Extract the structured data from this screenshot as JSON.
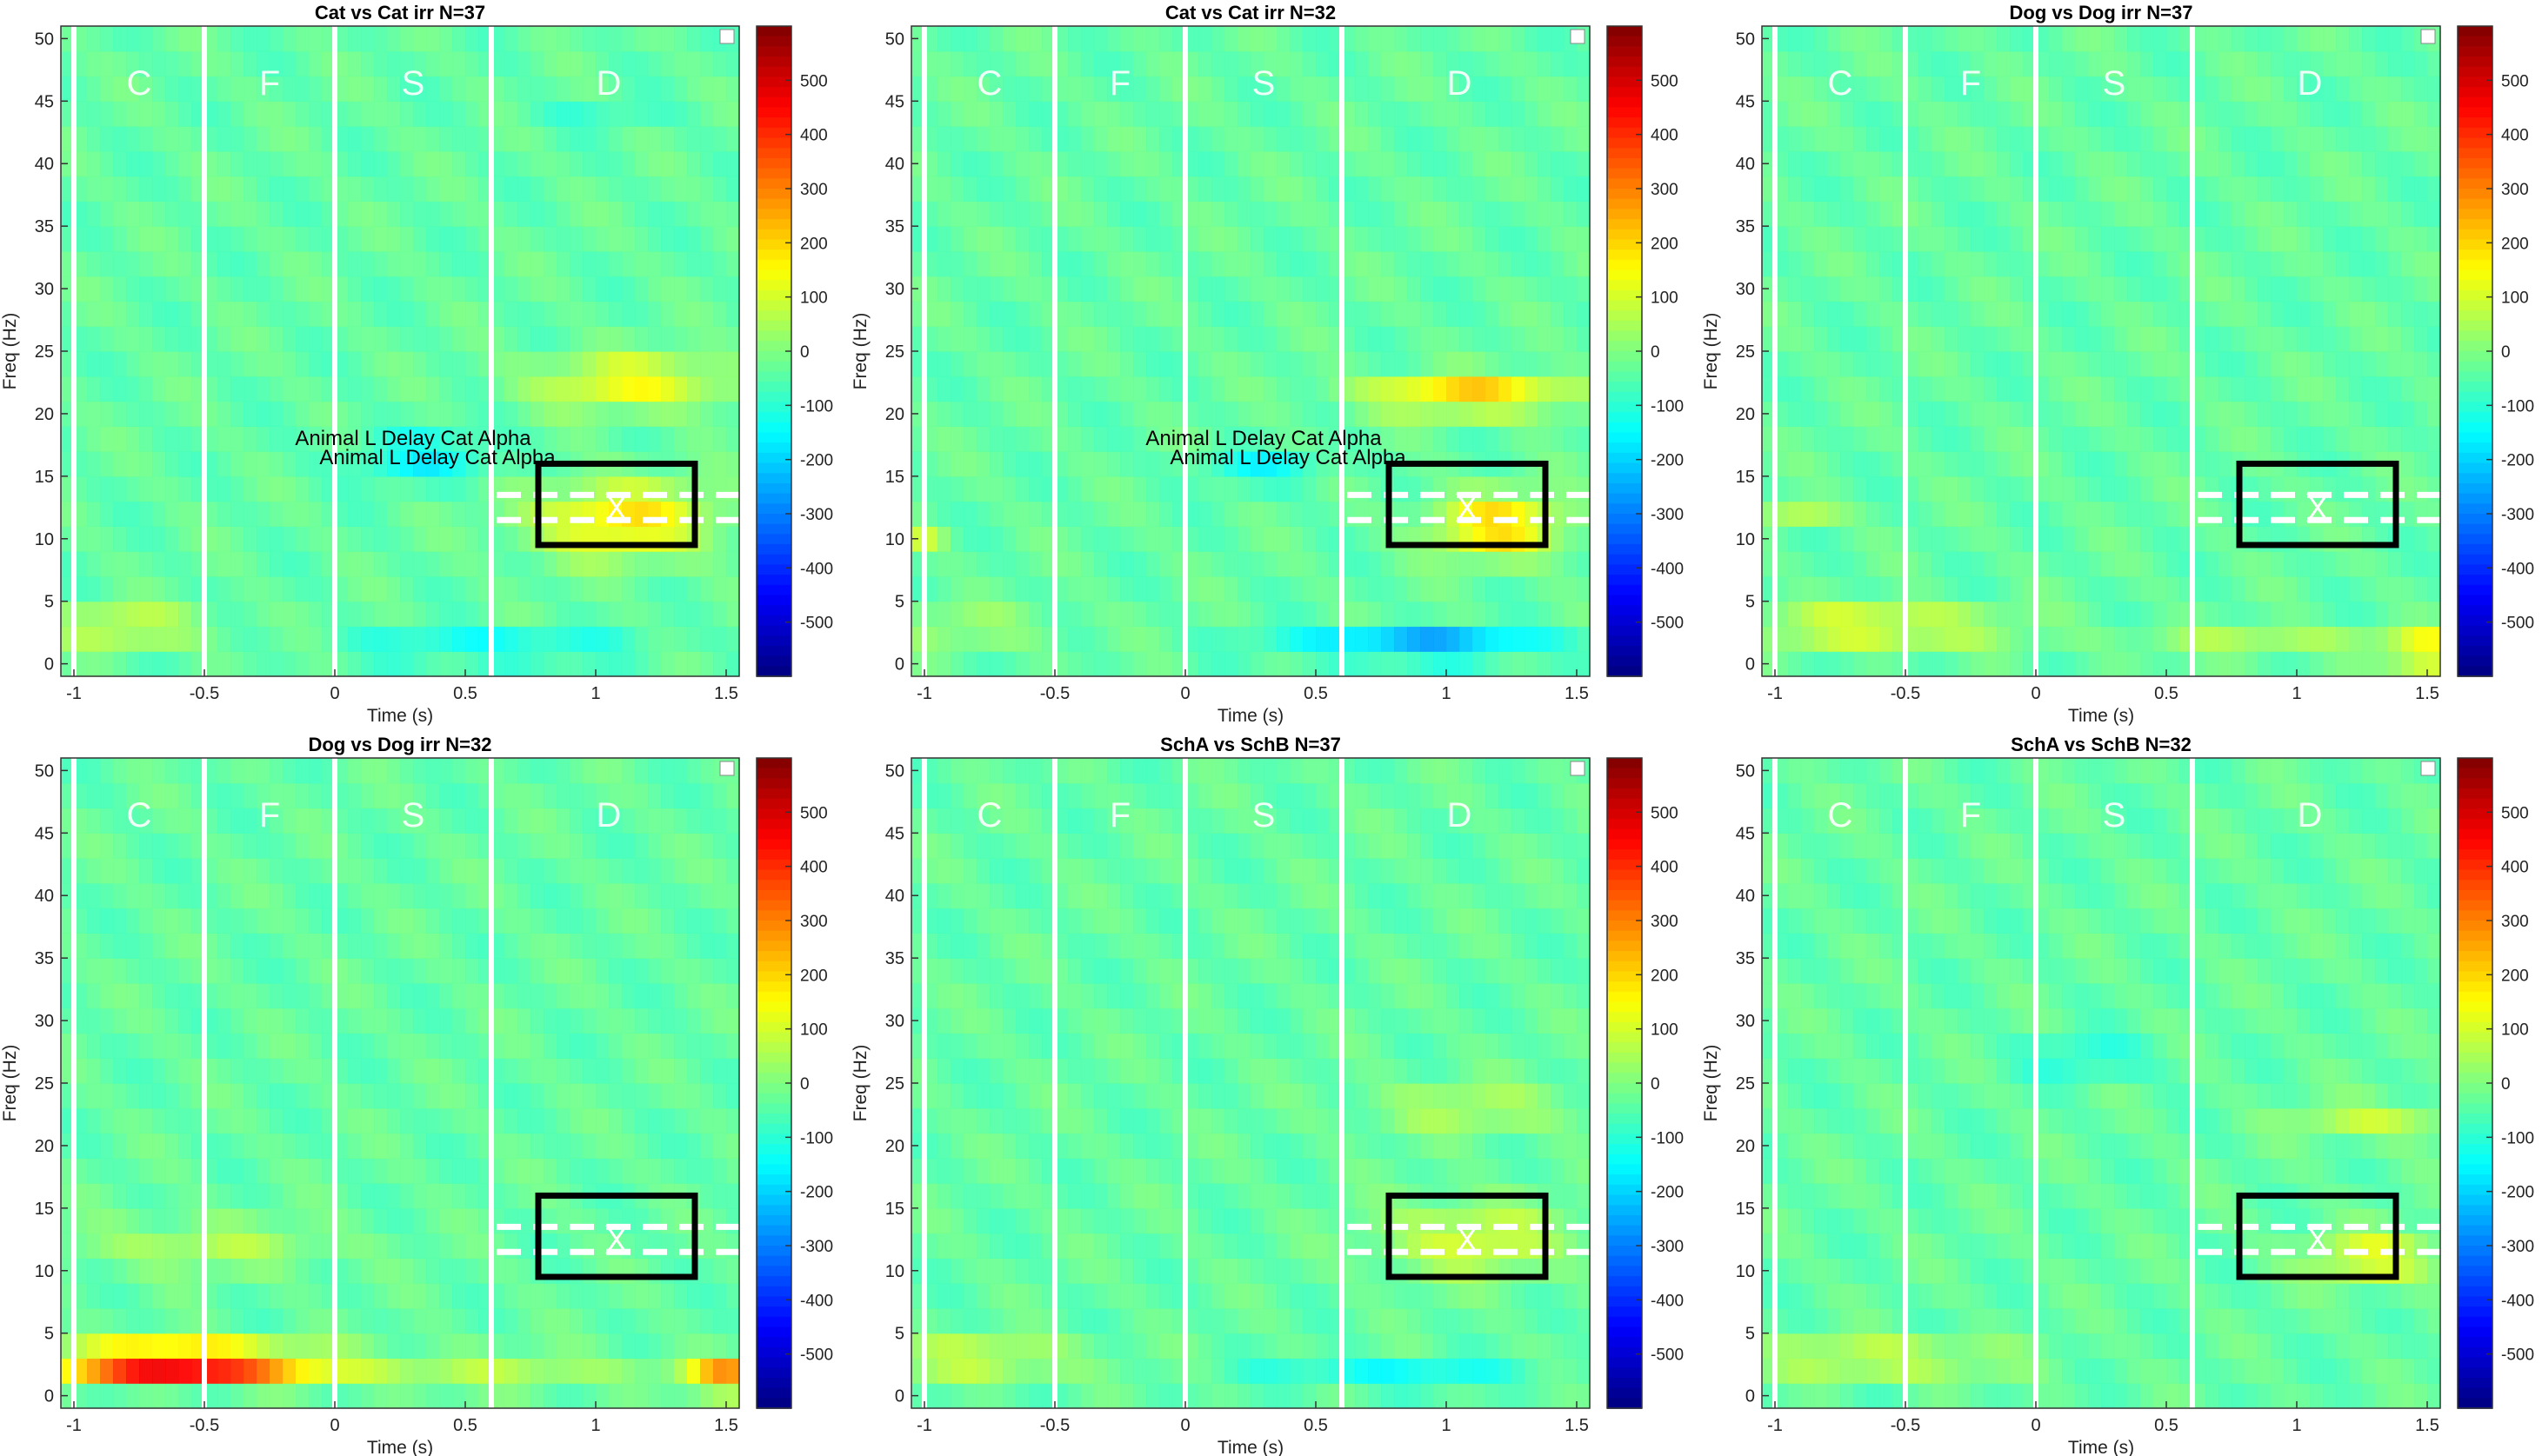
{
  "figure": {
    "phase_labels": [
      "C",
      "F",
      "S",
      "D"
    ],
    "colorbar_ticks": [
      500,
      400,
      300,
      200,
      100,
      0,
      -100,
      -200,
      -300,
      -400,
      -500
    ],
    "colormap": [
      "#00008f",
      "#0000ff",
      "#00ffff",
      "#ffff00",
      "#ff0000",
      "#800000"
    ],
    "box_color": "#000000"
  },
  "chart_data": [
    {
      "type": "heatmap",
      "title": "Cat vs Cat irr N=37",
      "xlabel": "Time (s)",
      "ylabel": "Freq (Hz)",
      "xlim": [
        -1.05,
        1.55
      ],
      "ylim": [
        -1,
        51
      ],
      "xticks": [
        "-1",
        "-0.5",
        "0",
        "0.5",
        "1",
        "1.5"
      ],
      "yticks": [
        "0",
        "5",
        "10",
        "15",
        "20",
        "25",
        "30",
        "35",
        "40",
        "45",
        "50"
      ],
      "clim": [
        -600,
        600
      ],
      "annotations": [
        "Animal L Delay Cat Alpha",
        "Animal L Delay Cat Alpha"
      ],
      "phase_boundaries_s": [
        -1,
        -0.5,
        0,
        0.6
      ],
      "roi_box": {
        "t0": 0.78,
        "t1": 1.38,
        "f0": 9.5,
        "f1": 16
      },
      "blobs": [
        {
          "t": 1.1,
          "f": 11.5,
          "dt": 0.35,
          "df": 3.0,
          "v": 220
        },
        {
          "t": 1.15,
          "f": 22.5,
          "dt": 0.38,
          "df": 2.2,
          "v": 180
        },
        {
          "t": 0.35,
          "f": 16.5,
          "dt": 0.3,
          "df": 2.0,
          "v": -110
        },
        {
          "t": -0.8,
          "f": 3.0,
          "dt": 0.3,
          "df": 0.9,
          "v": 320
        },
        {
          "t": 0.6,
          "f": 1.2,
          "dt": 0.5,
          "df": 1.0,
          "v": -180
        },
        {
          "t": 1.0,
          "f": 43.5,
          "dt": 0.3,
          "df": 0.8,
          "v": -60
        }
      ]
    },
    {
      "type": "heatmap",
      "title": "Cat vs Cat irr N=32",
      "xlabel": "Time (s)",
      "ylabel": "Freq (Hz)",
      "xlim": [
        -1.05,
        1.55
      ],
      "ylim": [
        -1,
        51
      ],
      "xticks": [
        "-1",
        "-0.5",
        "0",
        "0.5",
        "1",
        "1.5"
      ],
      "yticks": [
        "0",
        "5",
        "10",
        "15",
        "20",
        "25",
        "30",
        "35",
        "40",
        "45",
        "50"
      ],
      "clim": [
        -600,
        600
      ],
      "annotations": [
        "Animal L Delay Cat Alpha",
        "Animal L Delay Cat Alpha"
      ],
      "phase_boundaries_s": [
        -1,
        -0.5,
        0,
        0.6
      ],
      "roi_box": {
        "t0": 0.78,
        "t1": 1.38,
        "f0": 9.5,
        "f1": 16
      },
      "blobs": [
        {
          "t": 1.1,
          "f": 21.5,
          "dt": 0.4,
          "df": 1.5,
          "v": 260
        },
        {
          "t": 1.2,
          "f": 11.0,
          "dt": 0.25,
          "df": 2.5,
          "v": 240
        },
        {
          "t": -0.9,
          "f": 3.0,
          "dt": 0.4,
          "df": 0.8,
          "v": 220
        },
        {
          "t": 0.9,
          "f": 1.5,
          "dt": 0.5,
          "df": 1.2,
          "v": -230
        },
        {
          "t": 0.3,
          "f": 15.5,
          "dt": 0.25,
          "df": 1.2,
          "v": -110
        },
        {
          "t": -1.0,
          "f": 10.5,
          "dt": 0.08,
          "df": 0.7,
          "v": 200
        }
      ]
    },
    {
      "type": "heatmap",
      "title": "Dog vs Dog irr N=37",
      "xlabel": "Time (s)",
      "ylabel": "Freq (Hz)",
      "xlim": [
        -1.05,
        1.55
      ],
      "ylim": [
        -1,
        51
      ],
      "xticks": [
        "-1",
        "-0.5",
        "0",
        "0.5",
        "1",
        "1.5"
      ],
      "yticks": [
        "0",
        "5",
        "10",
        "15",
        "20",
        "25",
        "30",
        "35",
        "40",
        "45",
        "50"
      ],
      "clim": [
        -600,
        600
      ],
      "annotations": [],
      "phase_boundaries_s": [
        -1,
        -0.5,
        0,
        0.6
      ],
      "roi_box": {
        "t0": 0.78,
        "t1": 1.38,
        "f0": 9.5,
        "f1": 16
      },
      "blobs": [
        {
          "t": -0.6,
          "f": 3.0,
          "dt": 0.45,
          "df": 0.9,
          "v": 420
        },
        {
          "t": 1.5,
          "f": 1.0,
          "dt": 0.15,
          "df": 1.2,
          "v": 280
        },
        {
          "t": 0.9,
          "f": 1.5,
          "dt": 0.5,
          "df": 1.0,
          "v": 110
        },
        {
          "t": -0.9,
          "f": 11.5,
          "dt": 0.15,
          "df": 0.7,
          "v": 200
        }
      ]
    },
    {
      "type": "heatmap",
      "title": "Dog vs Dog irr N=32",
      "xlabel": "Time (s)",
      "ylabel": "Freq (Hz)",
      "xlim": [
        -1.05,
        1.55
      ],
      "ylim": [
        -1,
        51
      ],
      "xticks": [
        "-1",
        "-0.5",
        "0",
        "0.5",
        "1",
        "1.5"
      ],
      "yticks": [
        "0",
        "5",
        "10",
        "15",
        "20",
        "25",
        "30",
        "35",
        "40",
        "45",
        "50"
      ],
      "clim": [
        -600,
        600
      ],
      "annotations": [],
      "phase_boundaries_s": [
        -1,
        -0.5,
        0,
        0.6
      ],
      "roi_box": {
        "t0": 0.78,
        "t1": 1.38,
        "f0": 9.5,
        "f1": 16
      },
      "blobs": [
        {
          "t": -0.6,
          "f": 3.0,
          "dt": 0.45,
          "df": 1.0,
          "v": 560
        },
        {
          "t": -0.6,
          "f": 2.0,
          "dt": 0.45,
          "df": 1.0,
          "v": 300
        },
        {
          "t": 1.5,
          "f": 1.5,
          "dt": 0.15,
          "df": 1.2,
          "v": 330
        },
        {
          "t": -0.5,
          "f": 12.0,
          "dt": 0.5,
          "df": 2.0,
          "v": 90
        },
        {
          "t": 0.5,
          "f": 2.0,
          "dt": 0.8,
          "df": 1.5,
          "v": 90
        }
      ]
    },
    {
      "type": "heatmap",
      "title": "SchA vs SchB N=37",
      "xlabel": "Time (s)",
      "ylabel": "Freq (Hz)",
      "xlim": [
        -1.05,
        1.55
      ],
      "ylim": [
        -1,
        51
      ],
      "xticks": [
        "-1",
        "-0.5",
        "0",
        "0.5",
        "1",
        "1.5"
      ],
      "yticks": [
        "0",
        "5",
        "10",
        "15",
        "20",
        "25",
        "30",
        "35",
        "40",
        "45",
        "50"
      ],
      "clim": [
        -600,
        600
      ],
      "annotations": [],
      "phase_boundaries_s": [
        -1,
        -0.5,
        0,
        0.6
      ],
      "roi_box": {
        "t0": 0.78,
        "t1": 1.38,
        "f0": 9.5,
        "f1": 16
      },
      "blobs": [
        {
          "t": -0.8,
          "f": 3.0,
          "dt": 0.4,
          "df": 0.9,
          "v": 300
        },
        {
          "t": 1.1,
          "f": 12.5,
          "dt": 0.35,
          "df": 3.0,
          "v": 140
        },
        {
          "t": 1.1,
          "f": 23.0,
          "dt": 0.4,
          "df": 2.0,
          "v": 90
        },
        {
          "t": 0.8,
          "f": 1.5,
          "dt": 0.5,
          "df": 1.0,
          "v": -130
        }
      ]
    },
    {
      "type": "heatmap",
      "title": "SchA vs SchB N=32",
      "xlabel": "Time (s)",
      "ylabel": "Freq (Hz)",
      "xlim": [
        -1.05,
        1.55
      ],
      "ylim": [
        -1,
        51
      ],
      "xticks": [
        "-1",
        "-0.5",
        "0",
        "0.5",
        "1",
        "1.5"
      ],
      "yticks": [
        "0",
        "5",
        "10",
        "15",
        "20",
        "25",
        "30",
        "35",
        "40",
        "45",
        "50"
      ],
      "clim": [
        -600,
        600
      ],
      "annotations": [],
      "phase_boundaries_s": [
        -1,
        -0.5,
        0,
        0.6
      ],
      "roi_box": {
        "t0": 0.78,
        "t1": 1.38,
        "f0": 9.5,
        "f1": 16
      },
      "blobs": [
        {
          "t": -0.6,
          "f": 3.0,
          "dt": 0.45,
          "df": 0.9,
          "v": 320
        },
        {
          "t": 1.3,
          "f": 11.0,
          "dt": 0.25,
          "df": 2.0,
          "v": 170
        },
        {
          "t": 1.3,
          "f": 22.0,
          "dt": 0.3,
          "df": 1.5,
          "v": 120
        },
        {
          "t": 0.2,
          "f": 27.0,
          "dt": 0.25,
          "df": 1.5,
          "v": -90
        }
      ]
    }
  ]
}
